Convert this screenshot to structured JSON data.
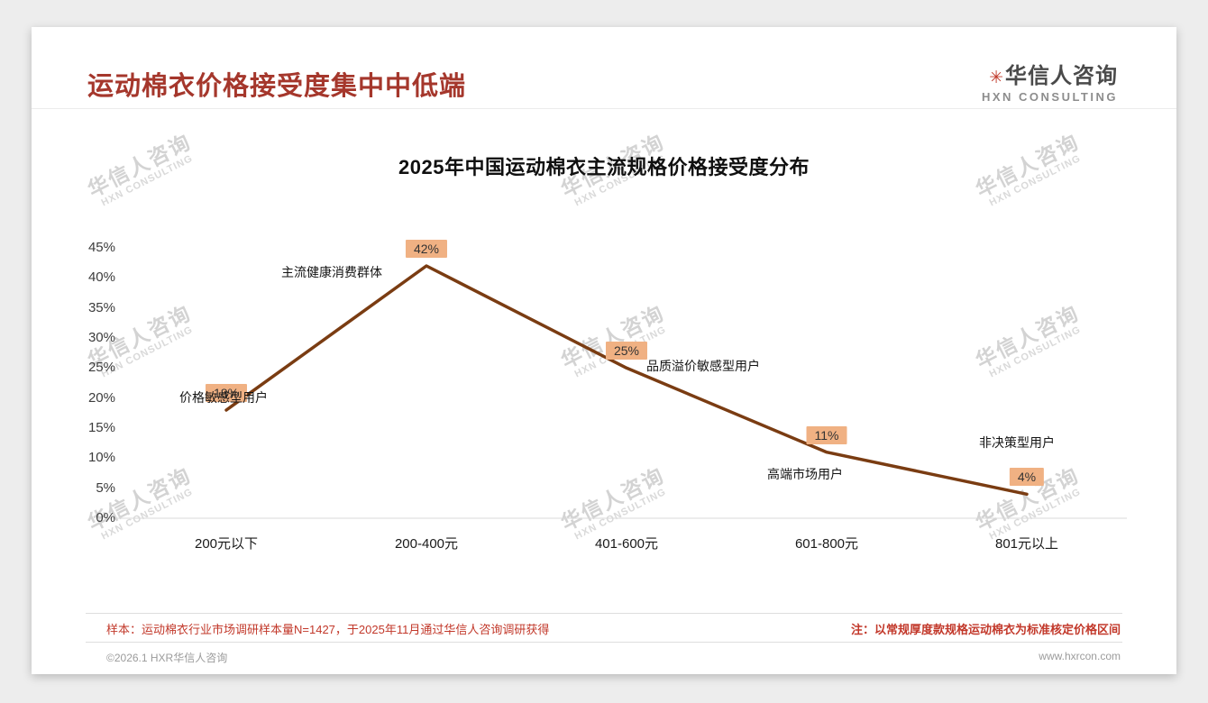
{
  "page": {
    "header": {
      "title": "运动棉衣价格接受度集中中低端"
    },
    "logo": {
      "star": "✳",
      "name": "华信人咨询",
      "subtitle": "HXN CONSULTING"
    },
    "watermark": {
      "line1": "华信人咨询",
      "line2": "HXN CONSULTING"
    },
    "footer": {
      "sample_note": "样本：运动棉衣行业市场调研样本量N=1427，于2025年11月通过华信人咨询调研获得",
      "price_note": "注：以常规厚度款规格运动棉衣为标准核定价格区间",
      "copyright": "©2026.1 HXR华信人咨询",
      "website": "www.hxrcon.com"
    }
  },
  "chart_data": {
    "type": "line",
    "title": "2025年中国运动棉衣主流规格价格接受度分布",
    "categories": [
      "200元以下",
      "200-400元",
      "401-600元",
      "601-800元",
      "801元以上"
    ],
    "values": [
      18,
      42,
      25,
      11,
      4
    ],
    "value_labels": [
      "18%",
      "42%",
      "25%",
      "11%",
      "4%"
    ],
    "point_annotations": [
      "价格敏感型用户",
      "主流健康消费群体",
      "品质溢价敏感型用户",
      "高端市场用户",
      "非决策型用户"
    ],
    "xlabel": "",
    "ylabel": "",
    "ylim": [
      0,
      45
    ],
    "ytick_step": 5,
    "ytick_suffix": "%",
    "grid": false,
    "legend": "none",
    "line_color": "#7a3c12",
    "point_label_bg": "#f0b183"
  }
}
